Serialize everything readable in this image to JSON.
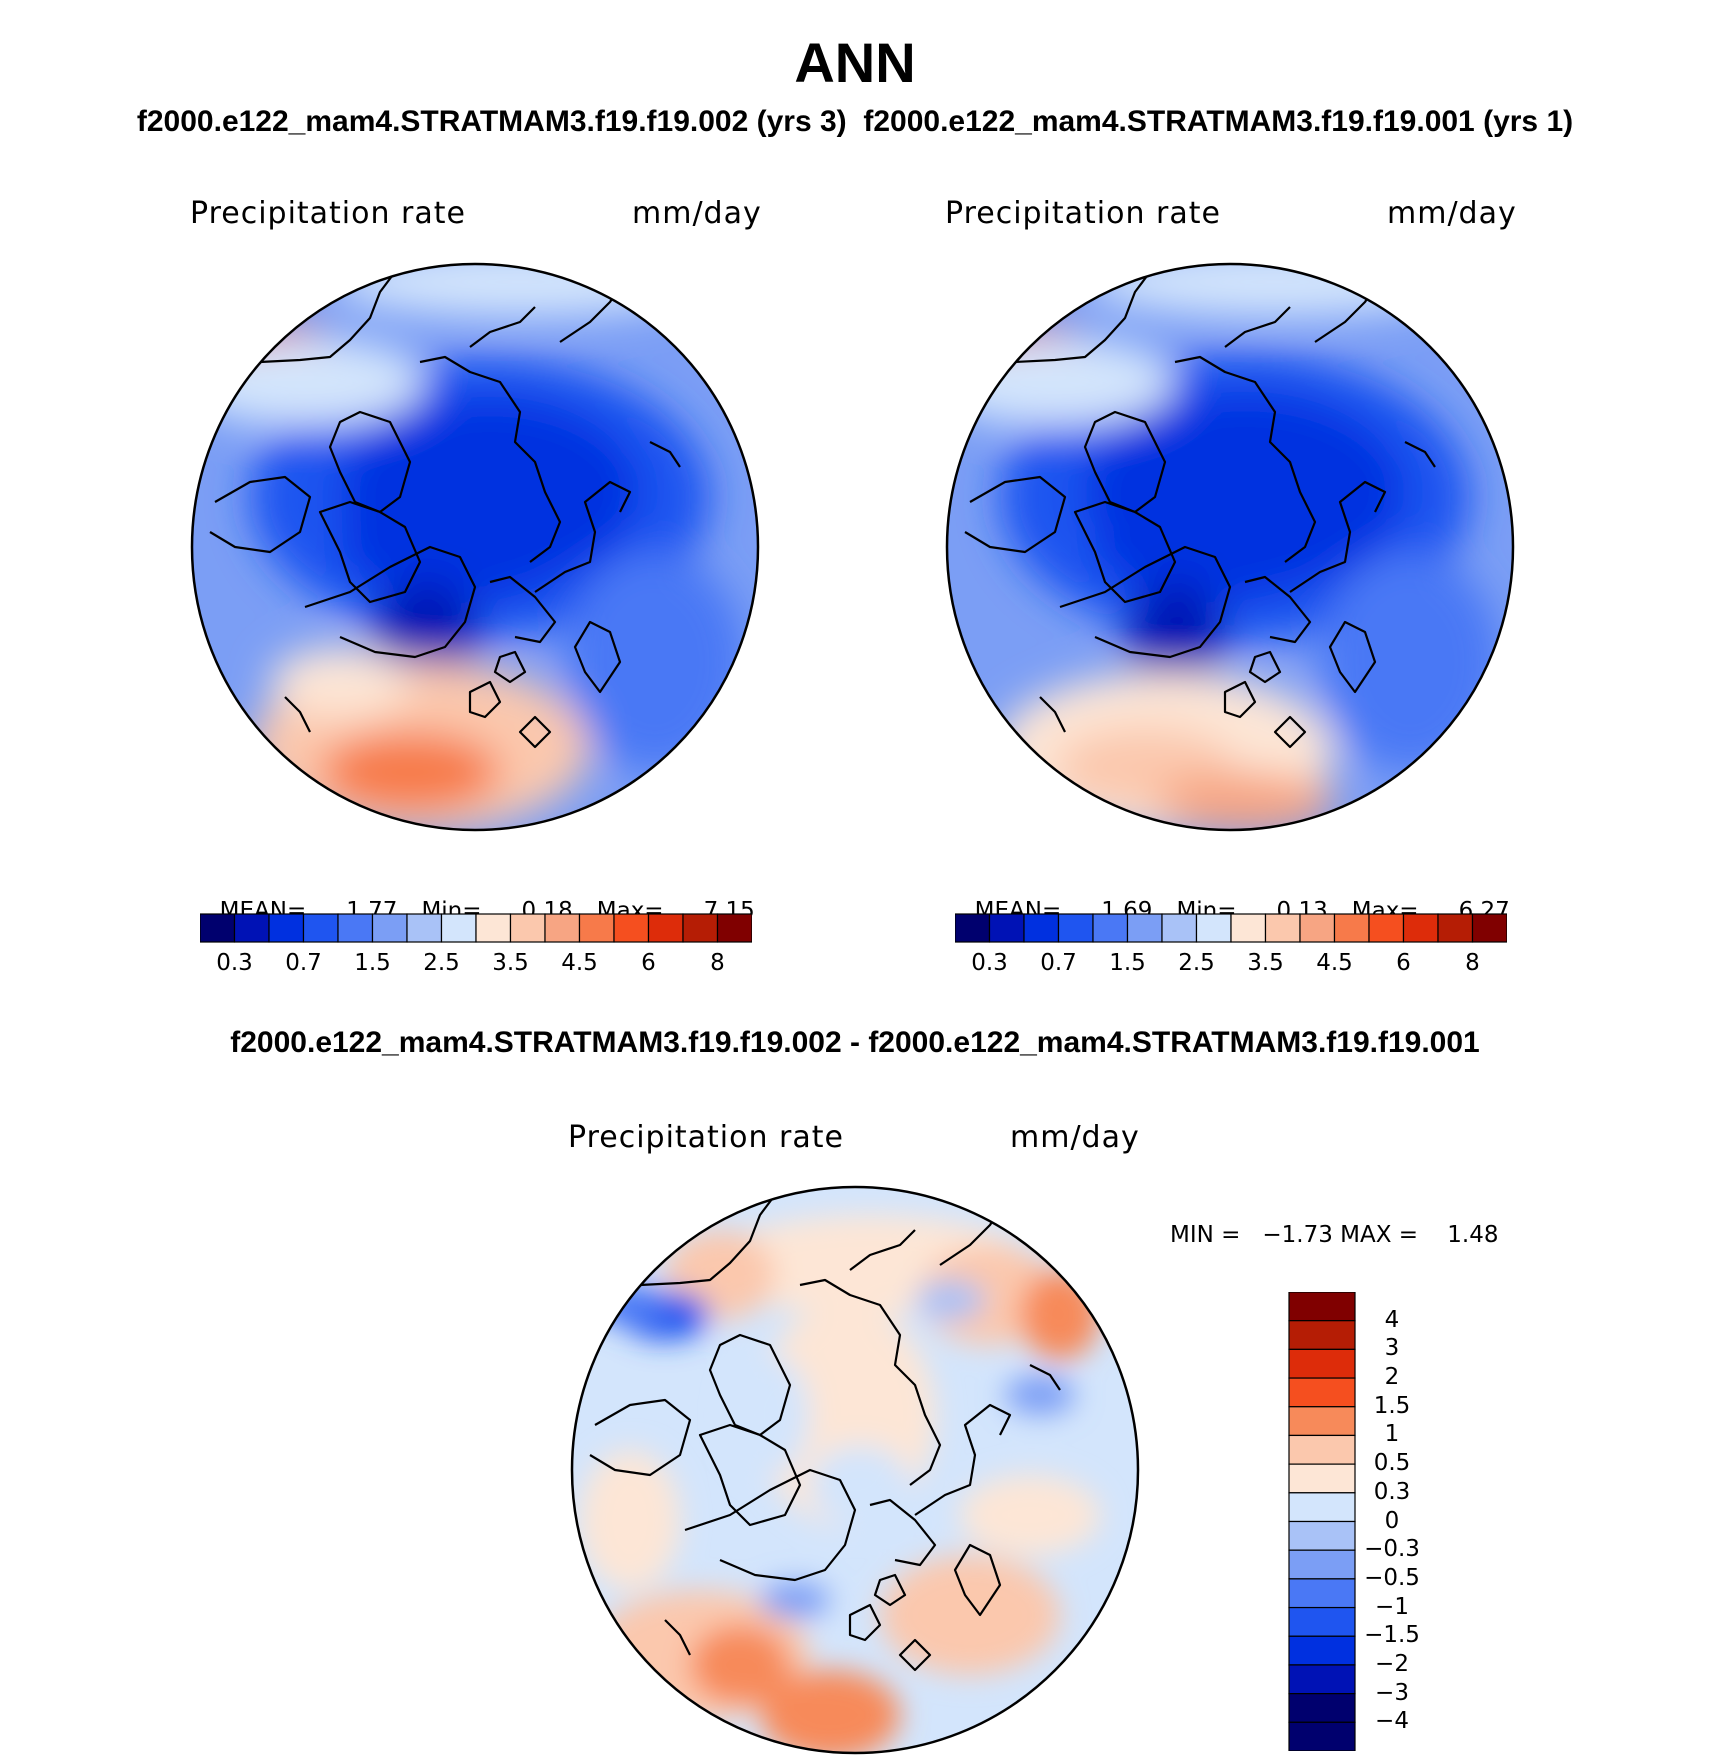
{
  "title": "ANN",
  "subtitle": "f2000.e122_mam4.STRATMAM3.f19.f19.002 (yrs 3)  f2000.e122_mam4.STRATMAM3.f19.f19.001 (yrs 1)",
  "diff_subtitle": "f2000.e122_mam4.STRATMAM3.f19.f19.002 - f2000.e122_mam4.STRATMAM3.f19.f19.001",
  "colors": {
    "abs_scale": [
      "#00006e",
      "#0012b5",
      "#0030e0",
      "#1f55f0",
      "#4a78f5",
      "#7b9ef5",
      "#a9c2f7",
      "#d3e5fc",
      "#fde6d6",
      "#fbc8ad",
      "#f7a583",
      "#f77a4a",
      "#f54f1f",
      "#dd2c0a",
      "#b51d05",
      "#800000"
    ],
    "diff_scale": [
      "#00006e",
      "#0012b5",
      "#0030e0",
      "#1f55f0",
      "#4a78f5",
      "#7b9ef5",
      "#a9c2f7",
      "#d3e5fc",
      "#fde6d6",
      "#fbc8ad",
      "#f78a5a",
      "#f54f1f",
      "#dd2c0a",
      "#b51d05",
      "#800000"
    ]
  },
  "chart_data": [
    {
      "type": "heatmap",
      "projection": "north-polar-stereographic",
      "case": "f2000.e122_mam4.STRATMAM3.f19.f19.002 (yrs 3)",
      "variable": "Precipitation  rate",
      "units": "mm/day",
      "mean": 1.77,
      "min": 0.18,
      "max": 7.15,
      "stats_text": {
        "mean_label": "MEAN=",
        "mean": "1.77",
        "min_label": "Min=",
        "min": "0.18",
        "max_label": "Max=",
        "max": "7.15"
      },
      "colorbar_ticks": [
        "0.3",
        "0.7",
        "1.5",
        "2.5",
        "3.5",
        "4.5",
        "6",
        "8"
      ],
      "contour_levels": [
        0.2,
        0.3,
        0.5,
        0.7,
        1,
        1.5,
        2,
        2.5,
        3,
        3.5,
        4,
        4.5,
        5,
        6,
        7,
        8
      ]
    },
    {
      "type": "heatmap",
      "projection": "north-polar-stereographic",
      "case": "f2000.e122_mam4.STRATMAM3.f19.f19.001 (yrs 1)",
      "variable": "Precipitation  rate",
      "units": "mm/day",
      "mean": 1.69,
      "min": 0.13,
      "max": 6.27,
      "stats_text": {
        "mean_label": "MEAN=",
        "mean": "1.69",
        "min_label": "Min=",
        "min": "0.13",
        "max_label": "Max=",
        "max": "6.27"
      },
      "colorbar_ticks": [
        "0.3",
        "0.7",
        "1.5",
        "2.5",
        "3.5",
        "4.5",
        "6",
        "8"
      ],
      "contour_levels": [
        0.2,
        0.3,
        0.5,
        0.7,
        1,
        1.5,
        2,
        2.5,
        3,
        3.5,
        4,
        4.5,
        5,
        6,
        7,
        8
      ]
    },
    {
      "type": "heatmap",
      "projection": "north-polar-stereographic",
      "case": "f2000.e122_mam4.STRATMAM3.f19.f19.002 - f2000.e122_mam4.STRATMAM3.f19.f19.001",
      "variable": "Precipitation  rate",
      "units": "mm/day",
      "min": -1.73,
      "max": 1.48,
      "stats_text": "MIN =   −1.73 MAX =    1.48",
      "colorbar_ticks": [
        "4",
        "3",
        "2",
        "1.5",
        "1",
        "0.5",
        "0.3",
        "0",
        "−0.3",
        "−0.5",
        "−1",
        "−1.5",
        "−2",
        "−3",
        "−4"
      ],
      "contour_levels": [
        -4,
        -3,
        -2,
        -1.5,
        -1,
        -0.5,
        -0.3,
        0,
        0.3,
        0.5,
        1,
        1.5,
        2,
        3,
        4
      ]
    }
  ]
}
